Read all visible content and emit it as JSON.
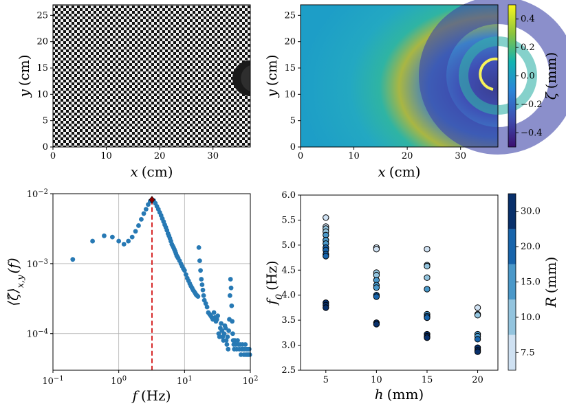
{
  "chart_data": [
    {
      "type": "image",
      "panel": "checkerboard-photo",
      "xlabel": "x",
      "xunit": "(cm)",
      "ylabel": "y",
      "yunit": "(cm)",
      "xlim": [
        0,
        37
      ],
      "ylim": [
        0,
        27
      ],
      "xticks": [
        0,
        10,
        20,
        30
      ],
      "yticks": [
        0,
        5,
        10,
        15,
        20,
        25
      ],
      "grid": false
    },
    {
      "type": "heatmap",
      "panel": "surface-deformation",
      "xlabel": "x",
      "xunit": "(cm)",
      "ylabel": "y",
      "yunit": "(cm)",
      "xlim": [
        0,
        37
      ],
      "ylim": [
        0,
        27
      ],
      "xticks": [
        0,
        10,
        20,
        30
      ],
      "yticks": [
        0,
        5,
        10,
        15,
        20,
        25
      ],
      "colorbar": {
        "label": "ζ",
        "unit": "(mm)",
        "range": [
          -0.5,
          0.5
        ],
        "ticks": [
          "0.4",
          "0.2",
          "0.0",
          "−0.2",
          "−0.4"
        ],
        "tick_values": [
          0.4,
          0.2,
          0.0,
          -0.2,
          -0.4
        ],
        "colormap": "viridis-like"
      },
      "grid": false
    },
    {
      "type": "scatter",
      "panel": "spectrum",
      "xscale": "log",
      "yscale": "log",
      "xlabel": "f",
      "xunit": "(Hz)",
      "ylabel": "⟨ζ̂⟩",
      "ylabel_sub": "x,y",
      "ylabel_tail": "(f)",
      "xlim": [
        0.1,
        100
      ],
      "ylim": [
        3e-05,
        0.01
      ],
      "xticks": [
        0.1,
        1,
        10,
        100
      ],
      "xtick_labels": [
        {
          "base": "10",
          "exp": "−1"
        },
        {
          "base": "10",
          "exp": "0"
        },
        {
          "base": "10",
          "exp": "1"
        },
        {
          "base": "10",
          "exp": "2"
        }
      ],
      "yticks": [
        0.0001,
        0.001,
        0.01
      ],
      "ytick_labels": [
        {
          "base": "10",
          "exp": "−4"
        },
        {
          "base": "10",
          "exp": "−3"
        },
        {
          "base": "10",
          "exp": "−2"
        }
      ],
      "grid": true,
      "peak": {
        "f": 3.2,
        "amp": 0.0082
      },
      "point_color": "#2779b4",
      "marker_color": "#d62728",
      "points": [
        [
          0.2,
          0.00115
        ],
        [
          0.4,
          0.0021
        ],
        [
          0.6,
          0.0025
        ],
        [
          0.8,
          0.0024
        ],
        [
          1.0,
          0.0021
        ],
        [
          1.2,
          0.0019
        ],
        [
          1.4,
          0.0021
        ],
        [
          1.6,
          0.0024
        ],
        [
          1.8,
          0.0029
        ],
        [
          2.0,
          0.0035
        ],
        [
          2.2,
          0.0043
        ],
        [
          2.4,
          0.0052
        ],
        [
          2.6,
          0.006
        ],
        [
          2.8,
          0.007
        ],
        [
          3.0,
          0.0078
        ],
        [
          3.2,
          0.0082
        ],
        [
          3.4,
          0.008
        ],
        [
          3.6,
          0.0073
        ],
        [
          3.8,
          0.0066
        ],
        [
          4.0,
          0.006
        ],
        [
          4.2,
          0.0054
        ],
        [
          4.4,
          0.0049
        ],
        [
          4.6,
          0.0044
        ],
        [
          4.8,
          0.004
        ],
        [
          5.0,
          0.0036
        ],
        [
          5.2,
          0.0033
        ],
        [
          5.4,
          0.003
        ],
        [
          5.6,
          0.0027
        ],
        [
          5.8,
          0.0025
        ],
        [
          6.0,
          0.0023
        ],
        [
          6.2,
          0.0021
        ],
        [
          6.4,
          0.0019
        ],
        [
          6.6,
          0.0018
        ],
        [
          6.8,
          0.0017
        ],
        [
          7.0,
          0.0016
        ],
        [
          7.2,
          0.0015
        ],
        [
          7.4,
          0.0014
        ],
        [
          7.6,
          0.0013
        ],
        [
          7.8,
          0.00125
        ],
        [
          8.0,
          0.0012
        ],
        [
          8.4,
          0.0011
        ],
        [
          8.8,
          0.001
        ],
        [
          9.2,
          0.00092
        ],
        [
          9.6,
          0.00085
        ],
        [
          10.0,
          0.0008
        ],
        [
          10.5,
          0.0007
        ],
        [
          11.0,
          0.00062
        ],
        [
          11.5,
          0.00057
        ],
        [
          12.0,
          0.00052
        ],
        [
          12.5,
          0.00048
        ],
        [
          13.0,
          0.00045
        ],
        [
          13.5,
          0.00042
        ],
        [
          14.0,
          0.0004
        ],
        [
          14.5,
          0.00038
        ],
        [
          15.0,
          0.00036
        ],
        [
          15.5,
          0.00035
        ],
        [
          16.0,
          0.00034
        ],
        [
          16.5,
          0.0017
        ],
        [
          17.0,
          0.0011
        ],
        [
          17.5,
          0.0008
        ],
        [
          18.0,
          0.0006
        ],
        [
          18.5,
          0.0005
        ],
        [
          19.0,
          0.00042
        ],
        [
          19.5,
          0.00035
        ],
        [
          20.0,
          0.0003
        ],
        [
          21.0,
          0.00027
        ],
        [
          22.0,
          0.00024
        ],
        [
          23.0,
          0.0002
        ],
        [
          24.0,
          0.00019
        ],
        [
          25.0,
          0.00018
        ],
        [
          26.0,
          0.00017
        ],
        [
          27.0,
          0.00016
        ],
        [
          28.0,
          0.0002
        ],
        [
          29.0,
          0.00017
        ],
        [
          30.0,
          0.00015
        ],
        [
          31.0,
          0.00016
        ],
        [
          32.0,
          0.00018
        ],
        [
          33.0,
          0.0001
        ],
        [
          34.0,
          9e-05
        ],
        [
          35.0,
          0.00012
        ],
        [
          36.0,
          0.00014
        ],
        [
          37.0,
          0.00011
        ],
        [
          38.0,
          9e-05
        ],
        [
          39.0,
          8e-05
        ],
        [
          40.0,
          0.0001
        ],
        [
          41.0,
          0.00013
        ],
        [
          42.0,
          0.00012
        ],
        [
          43.0,
          8e-05
        ],
        [
          44.0,
          7e-05
        ],
        [
          45.0,
          9e-05
        ],
        [
          46.0,
          6e-05
        ],
        [
          47.0,
          0.00011
        ],
        [
          48.0,
          0.00016
        ],
        [
          49.0,
          0.00035
        ],
        [
          50.0,
          0.0006
        ],
        [
          51.0,
          0.00045
        ],
        [
          52.0,
          0.00025
        ],
        [
          53.0,
          0.00015
        ],
        [
          54.0,
          0.0001
        ],
        [
          55.0,
          8e-05
        ],
        [
          56.0,
          7e-05
        ],
        [
          57.0,
          6e-05
        ],
        [
          58.0,
          8e-05
        ],
        [
          60.0,
          7e-05
        ],
        [
          62.0,
          6e-05
        ],
        [
          64.0,
          8e-05
        ],
        [
          66.0,
          7e-05
        ],
        [
          68.0,
          6e-05
        ],
        [
          70.0,
          7e-05
        ],
        [
          72.0,
          5e-05
        ],
        [
          74.0,
          6e-05
        ],
        [
          76.0,
          7e-05
        ],
        [
          78.0,
          6e-05
        ],
        [
          80.0,
          5e-05
        ],
        [
          82.0,
          6e-05
        ],
        [
          84.0,
          7e-05
        ],
        [
          86.0,
          5e-05
        ],
        [
          88.0,
          6e-05
        ],
        [
          90.0,
          5e-05
        ],
        [
          92.0,
          6e-05
        ],
        [
          94.0,
          5e-05
        ],
        [
          96.0,
          6e-05
        ],
        [
          98.0,
          5e-05
        ]
      ]
    },
    {
      "type": "scatter",
      "panel": "frequency-vs-thickness",
      "xlabel": "h",
      "xunit": "(mm)",
      "ylabel": "f",
      "ylabel_sub": "0",
      "yunit": "(Hz)",
      "xlim": [
        2.5,
        22
      ],
      "ylim": [
        2.5,
        6.0
      ],
      "xticks": [
        5,
        10,
        15,
        20
      ],
      "yticks": [
        "2.5",
        "3.0",
        "3.5",
        "4.0",
        "4.5",
        "5.0",
        "5.5",
        "6.0"
      ],
      "ytick_values": [
        2.5,
        3.0,
        3.5,
        4.0,
        4.5,
        5.0,
        5.5,
        6.0
      ],
      "grid": false,
      "colorbar": {
        "label": "R",
        "unit": "(mm)",
        "ticks": [
          "7.5",
          "10.0",
          "15.0",
          "20.0",
          "30.0"
        ],
        "levels": [
          {
            "R": 7.5,
            "color": "#cfe1f2"
          },
          {
            "R": 10.0,
            "color": "#93c4de"
          },
          {
            "R": 15.0,
            "color": "#4a98c9"
          },
          {
            "R": 20.0,
            "color": "#1764ab"
          },
          {
            "R": 30.0,
            "color": "#08306b"
          }
        ]
      },
      "points": [
        {
          "h": 5,
          "f": 5.55,
          "R": 7.5
        },
        {
          "h": 5,
          "f": 5.37,
          "R": 7.5
        },
        {
          "h": 5,
          "f": 5.33,
          "R": 10.0
        },
        {
          "h": 5,
          "f": 5.27,
          "R": 10.0
        },
        {
          "h": 5,
          "f": 5.2,
          "R": 15.0
        },
        {
          "h": 5,
          "f": 5.1,
          "R": 15.0
        },
        {
          "h": 5,
          "f": 5.03,
          "R": 15.0
        },
        {
          "h": 5,
          "f": 4.95,
          "R": 20.0
        },
        {
          "h": 5,
          "f": 4.9,
          "R": 20.0
        },
        {
          "h": 5,
          "f": 4.82,
          "R": 20.0
        },
        {
          "h": 5,
          "f": 4.78,
          "R": 20.0
        },
        {
          "h": 5,
          "f": 3.85,
          "R": 30.0
        },
        {
          "h": 5,
          "f": 3.8,
          "R": 30.0
        },
        {
          "h": 5,
          "f": 3.75,
          "R": 30.0
        },
        {
          "h": 10,
          "f": 4.95,
          "R": 7.5
        },
        {
          "h": 10,
          "f": 4.92,
          "R": 7.5
        },
        {
          "h": 10,
          "f": 4.45,
          "R": 10.0
        },
        {
          "h": 10,
          "f": 4.4,
          "R": 10.0
        },
        {
          "h": 10,
          "f": 4.3,
          "R": 15.0
        },
        {
          "h": 10,
          "f": 4.2,
          "R": 15.0
        },
        {
          "h": 10,
          "f": 4.15,
          "R": 15.0
        },
        {
          "h": 10,
          "f": 4.0,
          "R": 20.0
        },
        {
          "h": 10,
          "f": 3.97,
          "R": 20.0
        },
        {
          "h": 10,
          "f": 3.45,
          "R": 30.0
        },
        {
          "h": 10,
          "f": 3.42,
          "R": 30.0
        },
        {
          "h": 15,
          "f": 4.92,
          "R": 7.5
        },
        {
          "h": 15,
          "f": 4.6,
          "R": 10.0
        },
        {
          "h": 15,
          "f": 4.58,
          "R": 10.0
        },
        {
          "h": 15,
          "f": 4.35,
          "R": 10.0
        },
        {
          "h": 15,
          "f": 4.12,
          "R": 15.0
        },
        {
          "h": 15,
          "f": 3.62,
          "R": 15.0
        },
        {
          "h": 15,
          "f": 3.58,
          "R": 20.0
        },
        {
          "h": 15,
          "f": 3.55,
          "R": 20.0
        },
        {
          "h": 15,
          "f": 3.22,
          "R": 30.0
        },
        {
          "h": 15,
          "f": 3.18,
          "R": 30.0
        },
        {
          "h": 15,
          "f": 3.15,
          "R": 30.0
        },
        {
          "h": 20,
          "f": 3.75,
          "R": 7.5
        },
        {
          "h": 20,
          "f": 3.62,
          "R": 10.0
        },
        {
          "h": 20,
          "f": 3.6,
          "R": 10.0
        },
        {
          "h": 20,
          "f": 3.22,
          "R": 15.0
        },
        {
          "h": 20,
          "f": 3.18,
          "R": 15.0
        },
        {
          "h": 20,
          "f": 3.12,
          "R": 20.0
        },
        {
          "h": 20,
          "f": 2.95,
          "R": 30.0
        },
        {
          "h": 20,
          "f": 2.9,
          "R": 30.0
        },
        {
          "h": 20,
          "f": 2.87,
          "R": 30.0
        }
      ]
    }
  ]
}
